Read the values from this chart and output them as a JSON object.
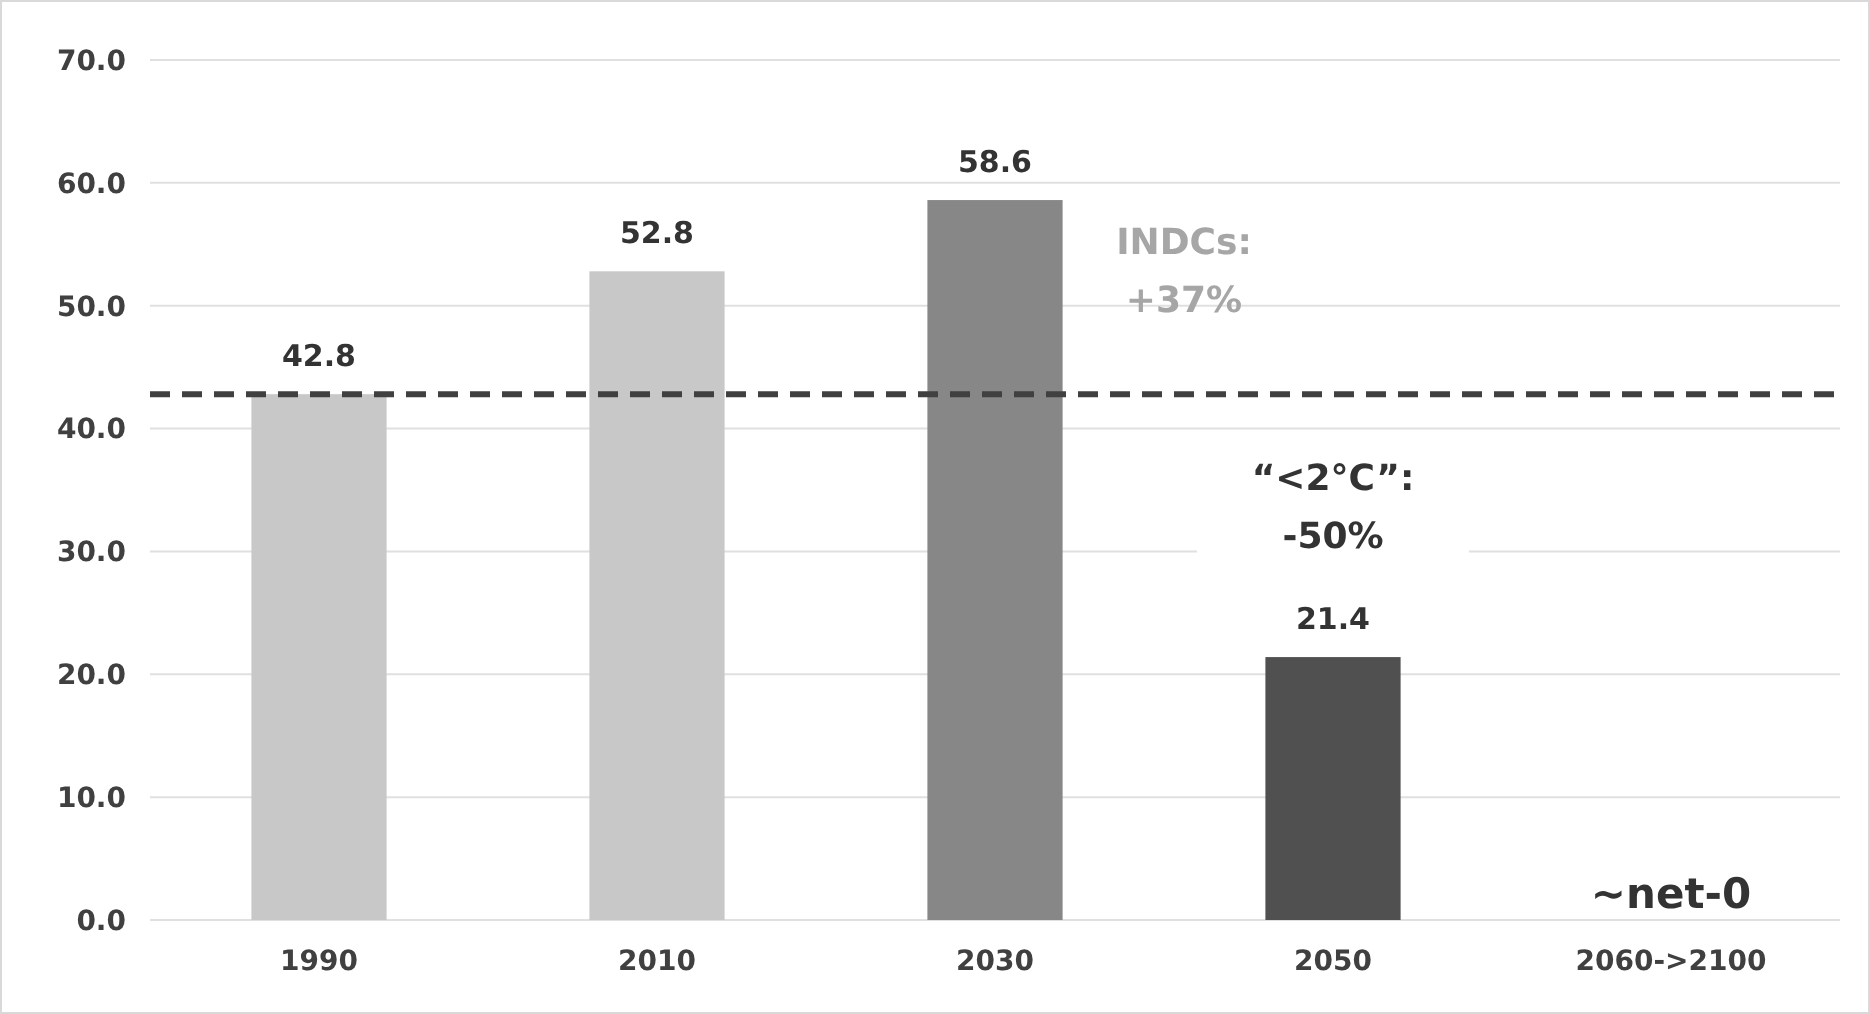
{
  "chart_data": {
    "type": "bar",
    "categories": [
      "1990",
      "2010",
      "2030",
      "2050",
      "2060->2100"
    ],
    "values": [
      42.8,
      52.8,
      58.6,
      21.4,
      0
    ],
    "colors": [
      "#c8c8c8",
      "#c8c8c8",
      "#878787",
      "#505050",
      "#505050"
    ],
    "value_labels": [
      "42.8",
      "52.8",
      "58.6",
      "21.4",
      "~net-0"
    ],
    "ylim": [
      0,
      70
    ],
    "yticks": [
      {
        "value": 0,
        "label": "0.0"
      },
      {
        "value": 10,
        "label": "10.0"
      },
      {
        "value": 20,
        "label": "20.0"
      },
      {
        "value": 30,
        "label": "30.0"
      },
      {
        "value": 40,
        "label": "40.0"
      },
      {
        "value": 50,
        "label": "50.0"
      },
      {
        "value": 60,
        "label": "60.0"
      },
      {
        "value": 70,
        "label": "70.0"
      }
    ],
    "grid": "y",
    "ref_lines": [
      {
        "axis": "y",
        "value": 42.8,
        "color": "#404040",
        "line_style": "dashed"
      }
    ],
    "annotations": [
      "INDCs: +37%",
      "“<2°C”: -50%"
    ]
  }
}
